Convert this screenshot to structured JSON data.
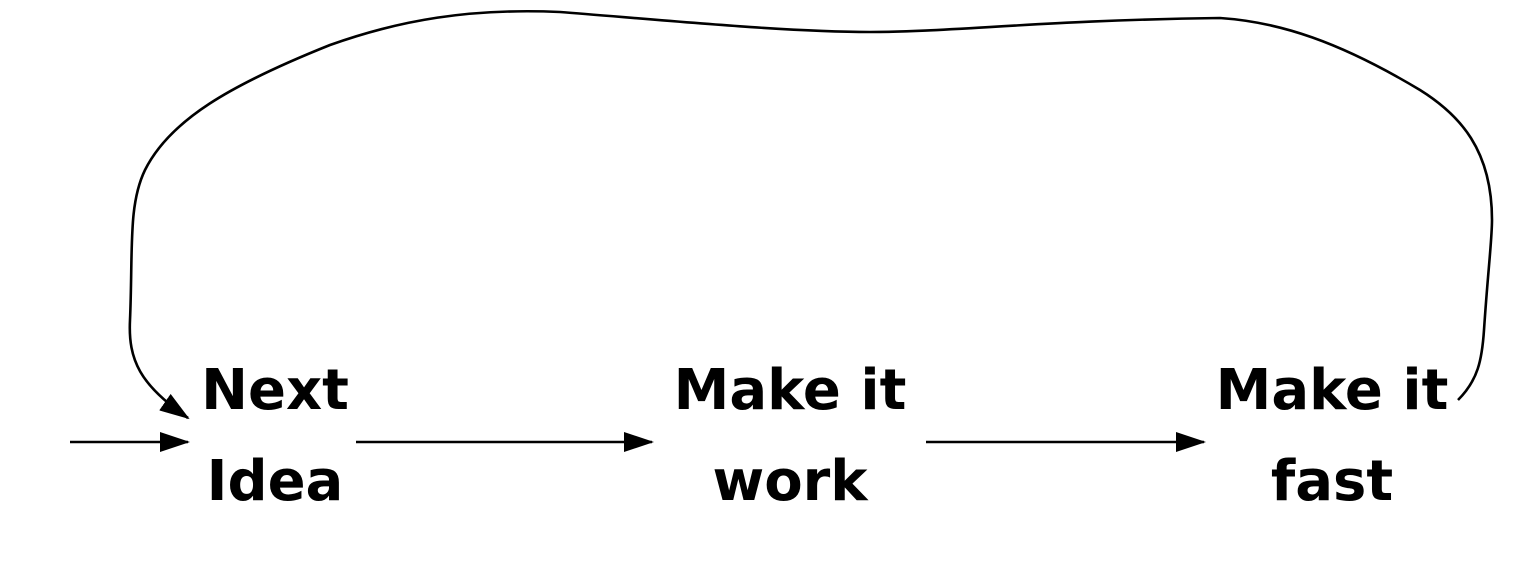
{
  "nodes": [
    {
      "id": "next-idea",
      "lines": [
        "Next",
        "Idea"
      ]
    },
    {
      "id": "make-it-work",
      "lines": [
        "Make it",
        "work"
      ]
    },
    {
      "id": "make-it-fast",
      "lines": [
        "Make it",
        "fast"
      ]
    }
  ],
  "edges": [
    {
      "from": "entry",
      "to": "next-idea"
    },
    {
      "from": "next-idea",
      "to": "make-it-work"
    },
    {
      "from": "make-it-work",
      "to": "make-it-fast"
    },
    {
      "from": "make-it-fast",
      "to": "next-idea"
    }
  ],
  "colors": {
    "stroke": "#000000",
    "text": "#000000",
    "background": "#ffffff"
  }
}
